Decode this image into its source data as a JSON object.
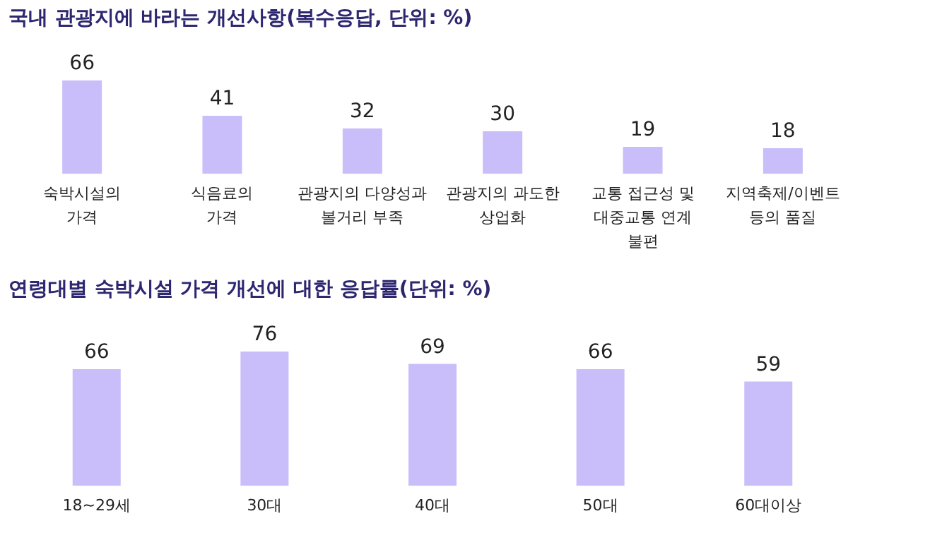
{
  "chart_data": [
    {
      "type": "bar",
      "title": "국내 관광지에 바라는 개선사항(복수응답, 단위: %)",
      "categories": [
        "숙박시설의\n가격",
        "식음료의\n가격",
        "관광지의 다양성과\n볼거리 부족",
        "관광지의 과도한\n상업화",
        "교통 접근성 및\n대중교통 연계\n불편",
        "지역축제/이벤트\n등의 품질"
      ],
      "values": [
        66,
        41,
        32,
        30,
        19,
        18
      ],
      "color": "#c9bdfa",
      "data_labels": true,
      "tick_labels": "x",
      "grid": false
    },
    {
      "type": "bar",
      "title": "연령대별 숙박시설 가격 개선에 대한 응답률(단위: %)",
      "categories": [
        "18~29세",
        "30대",
        "40대",
        "50대",
        "60대이상"
      ],
      "values": [
        66,
        76,
        69,
        66,
        59
      ],
      "color": "#c9bdfa",
      "data_labels": true,
      "tick_labels": "x",
      "grid": false
    }
  ]
}
